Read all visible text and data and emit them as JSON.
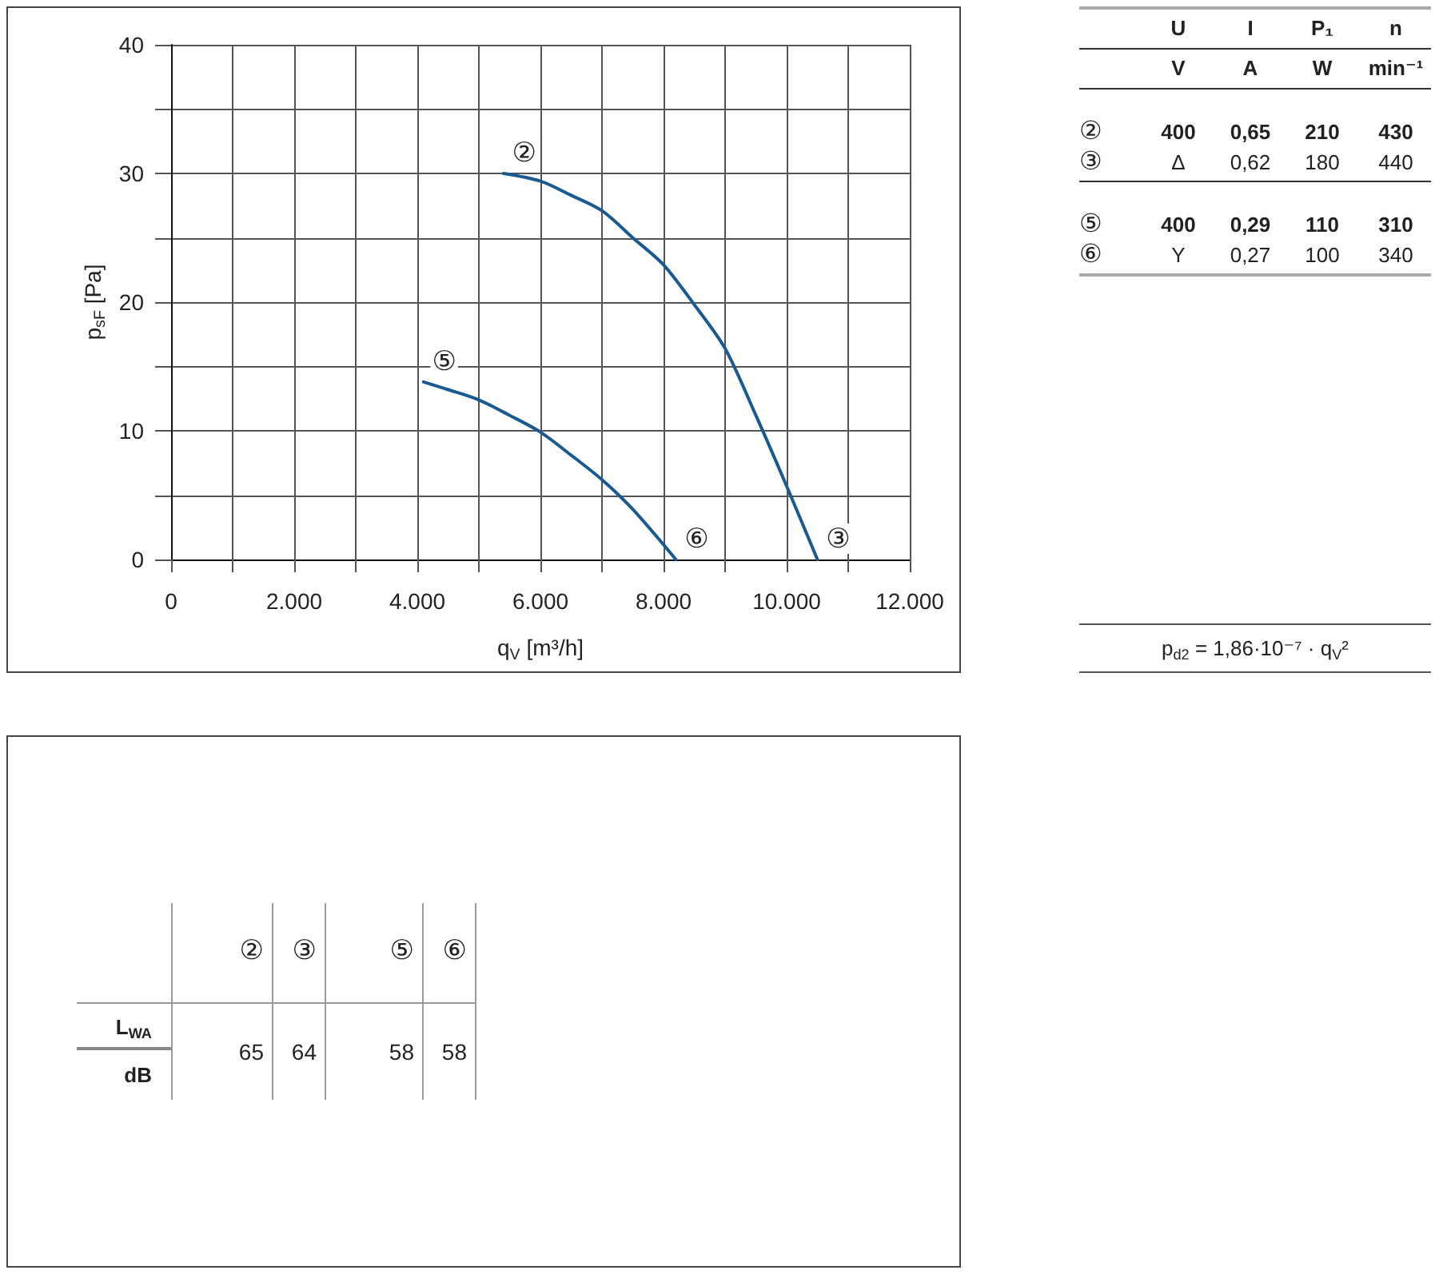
{
  "chart_data": [
    {
      "type": "line",
      "xlabel": "q$_{V}$ [m³/h]",
      "ylabel": "p$_{sF}$ [Pa]",
      "series": [
        {
          "color": "#1a5a92",
          "x": [
            5400,
            6000,
            6500,
            7000,
            7500,
            8000,
            8500,
            9000,
            9500,
            10000,
            10500
          ],
          "values": [
            30,
            29.4,
            28.3,
            27.1,
            25,
            22.9,
            19.8,
            16.4,
            11.2,
            5.7,
            0
          ]
        },
        {
          "color": "#1a5a92",
          "x": [
            4100,
            4500,
            5000,
            5500,
            6000,
            6500,
            7000,
            7500,
            8200
          ],
          "values": [
            13.8,
            13.2,
            12.4,
            11.2,
            9.9,
            8.1,
            6.2,
            3.9,
            0
          ]
        }
      ],
      "xlim": [
        0,
        12000
      ],
      "xticks": [
        0,
        {
          "value": 1000,
          "label": null
        },
        {
          "value": 2000,
          "label": "2.000"
        },
        {
          "value": 3000,
          "label": null
        },
        {
          "value": 4000,
          "label": "4.000"
        },
        {
          "value": 5000,
          "label": null
        },
        {
          "value": 6000,
          "label": "6.000"
        },
        {
          "value": 7000,
          "label": null
        },
        {
          "value": 8000,
          "label": "8.000"
        },
        {
          "value": 9000,
          "label": null
        },
        {
          "value": 10000,
          "label": "10.000"
        },
        {
          "value": 11000,
          "label": null
        },
        {
          "value": 12000,
          "label": "12.000"
        }
      ],
      "ylim": [
        0,
        40
      ],
      "yticks": [
        0,
        {
          "value": 5,
          "label": null
        },
        10,
        {
          "value": 15,
          "label": null
        },
        20,
        {
          "value": 25,
          "label": null
        },
        30,
        {
          "value": 35,
          "label": null
        },
        40
      ],
      "grid": true,
      "marker": "none",
      "line_style": "solid",
      "annotations": [
        {
          "text": "②",
          "x": 5400,
          "y": 30
        },
        {
          "text": "③",
          "x": 10500,
          "y": 0
        },
        {
          "text": "⑤",
          "x": 4100,
          "y": 13.8
        },
        {
          "text": "⑥",
          "x": 8200,
          "y": 0
        }
      ]
    },
    {
      "type": "other",
      "categories": [
        "U",
        "I",
        "P₁",
        "n"
      ],
      "y_categories": [
        null,
        "②",
        "③",
        "⑤",
        "⑥"
      ],
      "cell_labels": [
        [
          "V",
          "A",
          "W",
          "min⁻¹"
        ],
        [
          "400",
          "0,65",
          "210",
          "430"
        ],
        [
          "Δ",
          "0,62",
          "180",
          "440"
        ],
        [
          "400",
          "0,29",
          "110",
          "310"
        ],
        [
          "Y",
          "0,27",
          "100",
          "340"
        ]
      ],
      "annotations": [
        "p$_{d2}$ = 1,86·10⁻⁷ · q$_{V}$²"
      ]
    },
    {
      "type": "other",
      "categories": [
        "②",
        "③",
        "⑤",
        "⑥"
      ],
      "y_categories": [
        "L$_{WA}$",
        "dB"
      ],
      "cell_labels": [
        [
          "65",
          "64",
          "58",
          "58"
        ],
        [
          null,
          null,
          null,
          null
        ]
      ]
    }
  ]
}
